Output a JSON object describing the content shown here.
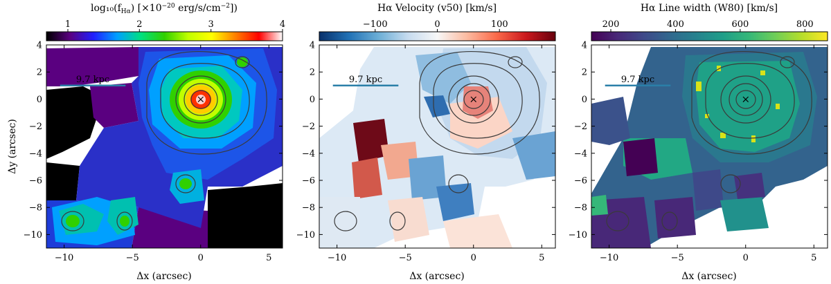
{
  "chart_data": [
    {
      "type": "heatmap",
      "panel": "flux",
      "colorbar_title": "log₁₀(f",
      "colorbar_title_sub": "Hα",
      "colorbar_title_rest": ") [×10",
      "colorbar_title_sup": "−20",
      "colorbar_title_end": " erg/s/cm",
      "colorbar_title_sup2": "−2",
      "colorbar_title_close": "])",
      "colorbar_range": [
        0.7,
        4.0
      ],
      "colorbar_ticks": [
        1,
        2,
        3,
        4
      ],
      "colorbar_tick_labels": [
        "1",
        "2",
        "3",
        "4"
      ],
      "colormap": [
        "#000000",
        "#5a0080",
        "#2020ff",
        "#00a0ff",
        "#00e080",
        "#30d000",
        "#c0ff00",
        "#ffff00",
        "#ff8000",
        "#ff0000",
        "#ffffff"
      ],
      "xlabel": "Δx (arcsec)",
      "ylabel": "Δy (arcsec)",
      "xlim": [
        -11.3,
        6.0
      ],
      "ylim": [
        -11.0,
        4.0
      ],
      "xticks": [
        -10,
        -5,
        0,
        5
      ],
      "xtick_labels": [
        "−10",
        "−5",
        "0",
        "5"
      ],
      "yticks": [
        4,
        2,
        0,
        -2,
        -4,
        -6,
        -8,
        -10
      ],
      "ytick_labels": [
        "4",
        "2",
        "0",
        "−2",
        "−4",
        "−6",
        "−8",
        "−10"
      ],
      "scale_bar_label": "9.7 kpc",
      "scale_bar_x": [
        -10.3,
        -5.5
      ],
      "scale_bar_y": 1.0,
      "center_marker": "×"
    },
    {
      "type": "heatmap",
      "panel": "velocity",
      "colorbar_title": "Hα Velocity (v50) [km/s]",
      "colorbar_range": [
        -190,
        190
      ],
      "colorbar_ticks": [
        -100,
        0,
        100
      ],
      "colorbar_tick_labels": [
        "−100",
        "0",
        "100"
      ],
      "colormap": [
        "#08306b",
        "#2171b5",
        "#6baed6",
        "#c6dbef",
        "#f7f7f7",
        "#fcbba1",
        "#fb6a4a",
        "#cb181d",
        "#67000d"
      ],
      "xlabel": "Δx (arcsec)",
      "xlim": [
        -11.3,
        6.0
      ],
      "ylim": [
        -11.0,
        4.0
      ],
      "xticks": [
        -10,
        -5,
        0,
        5
      ],
      "xtick_labels": [
        "−10",
        "−5",
        "0",
        "5"
      ],
      "yticks": [
        4,
        2,
        0,
        -2,
        -4,
        -6,
        -8,
        -10
      ],
      "ytick_labels": [
        "4",
        "2",
        "0",
        "−2",
        "−4",
        "−6",
        "−8",
        "−10"
      ],
      "scale_bar_label": "9.7 kpc",
      "center_marker": "×"
    },
    {
      "type": "heatmap",
      "panel": "linewidth",
      "colorbar_title": "Hα Line width (W80) [km/s]",
      "colorbar_range": [
        140,
        870
      ],
      "colorbar_ticks": [
        200,
        400,
        600,
        800
      ],
      "colorbar_tick_labels": [
        "200",
        "400",
        "600",
        "800"
      ],
      "colormap": [
        "#440154",
        "#482878",
        "#3e4989",
        "#31688e",
        "#26828e",
        "#1f9e89",
        "#35b779",
        "#6ece58",
        "#b5de2b",
        "#fde725"
      ],
      "xlabel": "Δx (arcsec)",
      "xlim": [
        -11.3,
        6.0
      ],
      "ylim": [
        -11.0,
        4.0
      ],
      "xticks": [
        -10,
        -5,
        0,
        5
      ],
      "xtick_labels": [
        "−10",
        "−5",
        "0",
        "5"
      ],
      "yticks": [
        4,
        2,
        0,
        -2,
        -4,
        -6,
        -8,
        -10
      ],
      "ytick_labels": [
        "4",
        "2",
        "0",
        "−2",
        "−4",
        "−6",
        "−8",
        "−10"
      ],
      "scale_bar_label": "9.7 kpc",
      "center_marker": "×"
    }
  ]
}
